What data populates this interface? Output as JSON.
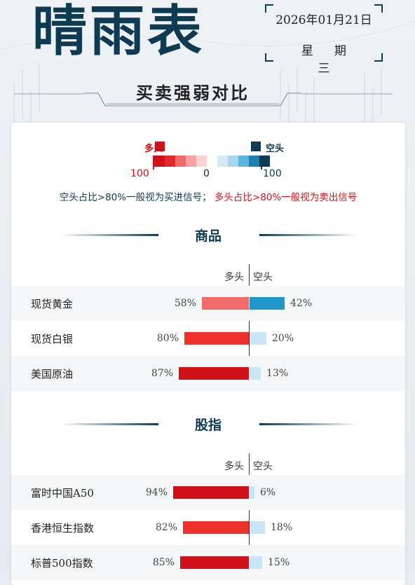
{
  "header": {
    "title": "晴雨表",
    "date": "2026年01月21日",
    "weekday": "星期三",
    "subtitle": "买卖强弱对比"
  },
  "legend": {
    "long_label": "多头",
    "short_label": "空头",
    "scale_left": "100",
    "scale_mid": "0",
    "scale_right": "100",
    "note_buy": "空头占比>80%一般视为买进信号；",
    "note_sell": "多头占比>80%一般视为卖出信号",
    "colors": {
      "long": "#d0111a",
      "short": "#0e3a52",
      "long_light": "#f26b6b",
      "short_mid": "#1f97c8",
      "short_light": "#c8e6f7",
      "long_mid": "#f0302a"
    }
  },
  "sections": [
    {
      "title": "商品",
      "col_long": "多头",
      "col_short": "空头",
      "rows": [
        {
          "name": "现货黄金",
          "long": 58,
          "short": 42,
          "long_label": "58%",
          "short_label": "42%"
        },
        {
          "name": "现货白银",
          "long": 80,
          "short": 20,
          "long_label": "80%",
          "short_label": "20%"
        },
        {
          "name": "美国原油",
          "long": 87,
          "short": 13,
          "long_label": "87%",
          "short_label": "13%"
        }
      ]
    },
    {
      "title": "股指",
      "col_long": "多头",
      "col_short": "空头",
      "rows": [
        {
          "name": "富时中国A50",
          "long": 94,
          "short": 6,
          "long_label": "94%",
          "short_label": "6%"
        },
        {
          "name": "香港恒生指数",
          "long": 82,
          "short": 18,
          "long_label": "82%",
          "short_label": "18%"
        },
        {
          "name": "标普500指数",
          "long": 85,
          "short": 15,
          "long_label": "85%",
          "short_label": "15%"
        }
      ]
    }
  ]
}
